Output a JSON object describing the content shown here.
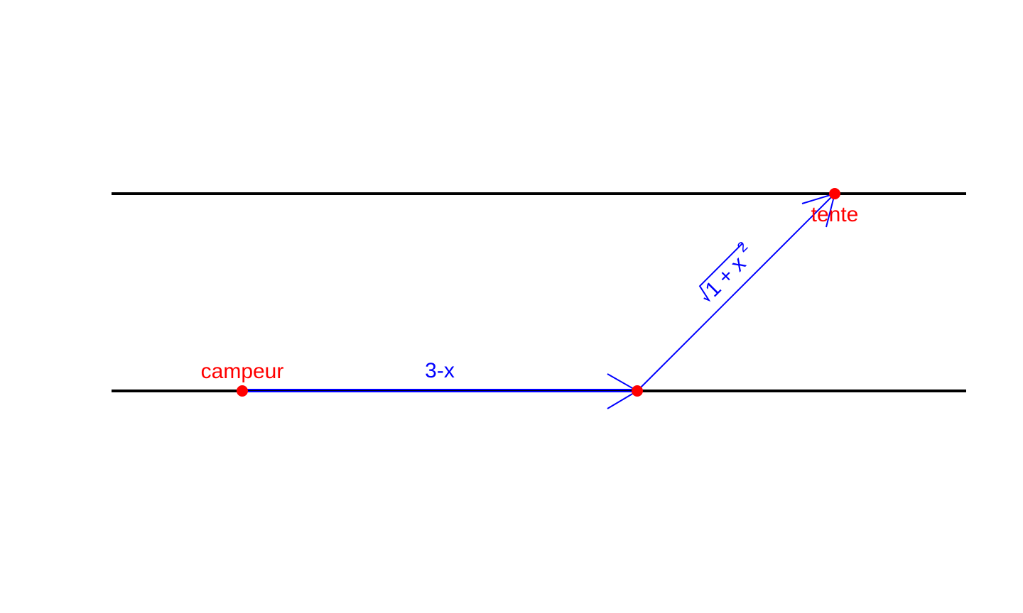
{
  "diagram": {
    "points": {
      "campeur": {
        "label": "campeur"
      },
      "tente": {
        "label": "tente"
      }
    },
    "segments": {
      "shore_segment": {
        "label": "3-x"
      },
      "crossing_segment": {
        "label_radicand": "1 + x",
        "label_exponent": "2"
      }
    },
    "colors": {
      "shore": "#000000",
      "points": "#ff0000",
      "path": "#0000ff"
    }
  }
}
